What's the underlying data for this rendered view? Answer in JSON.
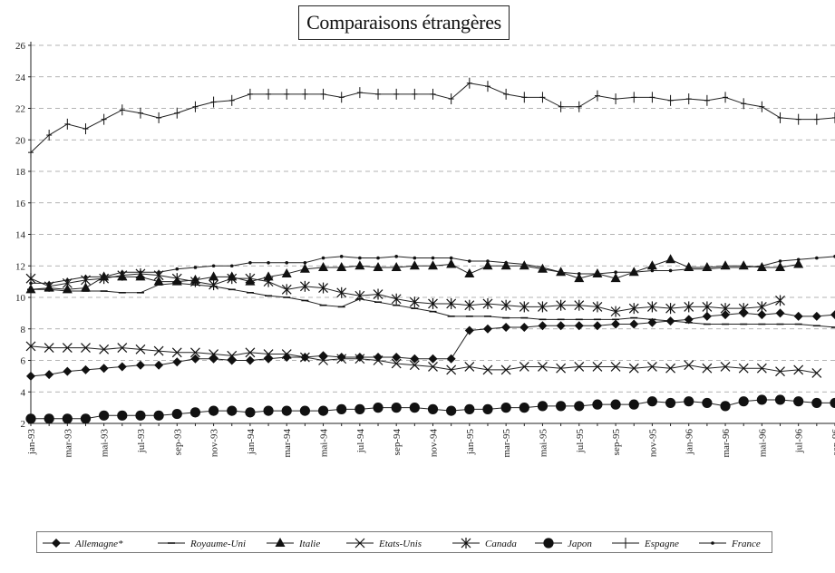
{
  "chart_data": {
    "type": "line",
    "title": "Comparaisons étrangères",
    "xlabel": "",
    "ylabel": "",
    "ylim": [
      2,
      26
    ],
    "yticks": [
      2,
      4,
      6,
      8,
      10,
      12,
      14,
      16,
      18,
      20,
      22,
      24,
      26
    ],
    "grid": "horizontal dashed",
    "legend_position": "bottom",
    "categories": [
      "jan-93",
      "fév-93",
      "mar-93",
      "avr-93",
      "mai-93",
      "juin-93",
      "jul-93",
      "août-93",
      "sep-93",
      "oct-93",
      "nov-93",
      "déc-93",
      "jan-94",
      "fév-94",
      "mar-94",
      "avr-94",
      "mai-94",
      "juin-94",
      "jul-94",
      "août-94",
      "sep-94",
      "oct-94",
      "nov-94",
      "déc-94",
      "jan-95",
      "fév-95",
      "mar-95",
      "avr-95",
      "mai-95",
      "juin-95",
      "jul-95",
      "août-95",
      "sep-95",
      "oct-95",
      "nov-95",
      "déc-95",
      "jan-96",
      "fév-96",
      "mar-96",
      "avr-96",
      "mai-96",
      "juin-96",
      "jul-96",
      "août-96",
      "sep-96"
    ],
    "tick_labels": [
      "jan-93",
      "mar-93",
      "mai-93",
      "jul-93",
      "sep-93",
      "nov-93",
      "jan-94",
      "mar-94",
      "mai-94",
      "jul-94",
      "sep-94",
      "nov-94",
      "jan-95",
      "mar-95",
      "mai-95",
      "jul-95",
      "sep-95",
      "nov-95",
      "jan-96",
      "mar-96",
      "mai-96",
      "jul-96",
      "sep-96"
    ],
    "series": [
      {
        "name": "Allemagne*",
        "marker": "diamond",
        "values": [
          5.0,
          5.1,
          5.3,
          5.4,
          5.5,
          5.6,
          5.7,
          5.7,
          5.9,
          6.1,
          6.1,
          6.0,
          6.0,
          6.1,
          6.2,
          6.2,
          6.3,
          6.2,
          6.2,
          6.2,
          6.2,
          6.1,
          6.1,
          6.1,
          7.9,
          8.0,
          8.1,
          8.1,
          8.2,
          8.2,
          8.2,
          8.2,
          8.3,
          8.3,
          8.4,
          8.5,
          8.6,
          8.8,
          8.9,
          9.0,
          8.9,
          9.0,
          8.8,
          8.8,
          8.9
        ]
      },
      {
        "name": "Royaume-Uni",
        "marker": "dash",
        "values": [
          10.5,
          10.5,
          10.4,
          10.4,
          10.4,
          10.3,
          10.3,
          10.8,
          10.9,
          10.8,
          10.7,
          10.5,
          10.3,
          10.1,
          10.0,
          9.8,
          9.5,
          9.4,
          9.9,
          9.7,
          9.5,
          9.3,
          9.1,
          8.8,
          8.8,
          8.8,
          8.7,
          8.7,
          8.6,
          8.6,
          8.6,
          8.6,
          8.6,
          8.7,
          8.6,
          8.5,
          8.4,
          8.3,
          8.3,
          8.3,
          8.3,
          8.3,
          8.3,
          8.2,
          8.1
        ]
      },
      {
        "name": "Italie",
        "marker": "triangle",
        "values": [
          10.5,
          10.6,
          10.5,
          10.6,
          11.3,
          11.3,
          11.3,
          11.0,
          11.0,
          11.1,
          11.3,
          11.3,
          11.0,
          11.3,
          11.5,
          11.8,
          11.9,
          11.9,
          12.0,
          11.9,
          11.9,
          12.0,
          12.0,
          12.1,
          11.5,
          12.0,
          12.0,
          12.0,
          11.8,
          11.6,
          11.2,
          11.5,
          11.2,
          11.6,
          12.0,
          12.4,
          11.9,
          11.9,
          12.0,
          12.0,
          11.9,
          11.9,
          12.1,
          null,
          null
        ]
      },
      {
        "name": "Etats-Unis",
        "marker": "x",
        "values": [
          6.9,
          6.8,
          6.8,
          6.8,
          6.7,
          6.8,
          6.7,
          6.6,
          6.5,
          6.5,
          6.4,
          6.3,
          6.5,
          6.4,
          6.4,
          6.2,
          6.0,
          6.1,
          6.1,
          6.0,
          5.8,
          5.7,
          5.6,
          5.4,
          5.6,
          5.4,
          5.4,
          5.6,
          5.6,
          5.5,
          5.6,
          5.6,
          5.6,
          5.5,
          5.6,
          5.5,
          5.7,
          5.5,
          5.6,
          5.5,
          5.5,
          5.3,
          5.4,
          5.2,
          null
        ]
      },
      {
        "name": "Canada",
        "marker": "asterisk",
        "values": [
          11.2,
          10.7,
          10.9,
          11.1,
          11.2,
          11.4,
          11.5,
          11.4,
          11.2,
          11.0,
          10.8,
          11.2,
          11.2,
          11.0,
          10.5,
          10.7,
          10.6,
          10.3,
          10.1,
          10.2,
          9.9,
          9.7,
          9.6,
          9.6,
          9.5,
          9.6,
          9.5,
          9.4,
          9.4,
          9.5,
          9.5,
          9.4,
          9.1,
          9.3,
          9.4,
          9.3,
          9.4,
          9.4,
          9.3,
          9.3,
          9.4,
          9.8,
          null,
          null,
          null
        ]
      },
      {
        "name": "Japon",
        "marker": "circle",
        "values": [
          2.3,
          2.3,
          2.3,
          2.3,
          2.5,
          2.5,
          2.5,
          2.5,
          2.6,
          2.7,
          2.8,
          2.8,
          2.7,
          2.8,
          2.8,
          2.8,
          2.8,
          2.9,
          2.9,
          3.0,
          3.0,
          3.0,
          2.9,
          2.8,
          2.9,
          2.9,
          3.0,
          3.0,
          3.1,
          3.1,
          3.1,
          3.2,
          3.2,
          3.2,
          3.4,
          3.3,
          3.4,
          3.3,
          3.1,
          3.4,
          3.5,
          3.5,
          3.4,
          3.3,
          3.3
        ]
      },
      {
        "name": "Espagne",
        "marker": "plus",
        "values": [
          19.2,
          20.3,
          21.0,
          20.7,
          21.3,
          21.9,
          21.7,
          21.4,
          21.7,
          22.1,
          22.4,
          22.5,
          22.9,
          22.9,
          22.9,
          22.9,
          22.9,
          22.7,
          23.0,
          22.9,
          22.9,
          22.9,
          22.9,
          22.6,
          23.6,
          23.4,
          22.9,
          22.7,
          22.7,
          22.1,
          22.1,
          22.8,
          22.6,
          22.7,
          22.7,
          22.5,
          22.6,
          22.5,
          22.7,
          22.3,
          22.1,
          21.4,
          21.3,
          21.3,
          21.4
        ]
      },
      {
        "name": "France",
        "marker": "dot",
        "values": [
          10.9,
          10.9,
          11.1,
          11.3,
          11.3,
          11.6,
          11.6,
          11.6,
          11.8,
          11.9,
          12.0,
          12.0,
          12.2,
          12.2,
          12.2,
          12.2,
          12.5,
          12.6,
          12.5,
          12.5,
          12.6,
          12.5,
          12.5,
          12.5,
          12.3,
          12.3,
          12.2,
          12.1,
          11.9,
          11.6,
          11.5,
          11.5,
          11.6,
          11.6,
          11.7,
          11.7,
          11.8,
          11.8,
          11.9,
          11.9,
          12.0,
          12.3,
          12.4,
          12.5,
          12.6
        ]
      }
    ]
  }
}
